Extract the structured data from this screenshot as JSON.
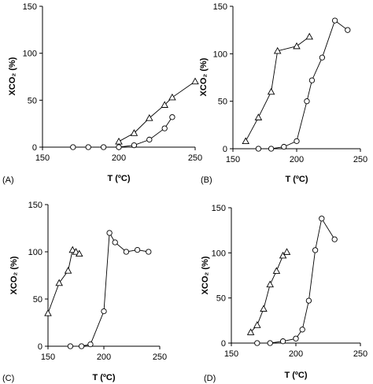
{
  "chart_data": [
    {
      "type": "line",
      "panel_label": "(A)",
      "xlabel": "T (ºC)",
      "ylabel": "XCO₂ (%)",
      "xlim": [
        150,
        250
      ],
      "ylim": [
        0,
        150
      ],
      "xticks": [
        "150",
        "200",
        "250"
      ],
      "yticks": [
        "0",
        "50",
        "100",
        "150"
      ],
      "series": [
        {
          "marker": "triangle",
          "x": [
            200,
            210,
            220,
            230,
            235,
            250
          ],
          "y": [
            6,
            15,
            31,
            45,
            53,
            70
          ]
        },
        {
          "marker": "circle",
          "x": [
            170,
            180,
            190,
            200,
            210,
            220,
            230,
            235
          ],
          "y": [
            0,
            0,
            0,
            0,
            2,
            8,
            20,
            32
          ]
        }
      ]
    },
    {
      "type": "line",
      "panel_label": "(B)",
      "xlabel": "T (ºC)",
      "ylabel": "XCO₂ (%)",
      "xlim": [
        150,
        250
      ],
      "ylim": [
        0,
        150
      ],
      "xticks": [
        "150",
        "200",
        "250"
      ],
      "yticks": [
        "0",
        "50",
        "100",
        "150"
      ],
      "series": [
        {
          "marker": "triangle",
          "x": [
            160,
            170,
            180,
            185,
            200,
            210
          ],
          "y": [
            8,
            33,
            60,
            103,
            108,
            118
          ]
        },
        {
          "marker": "circle",
          "x": [
            170,
            180,
            190,
            200,
            208,
            212,
            220,
            230,
            240
          ],
          "y": [
            0,
            0,
            2,
            8,
            50,
            72,
            96,
            135,
            125
          ]
        }
      ]
    },
    {
      "type": "line",
      "panel_label": "(C)",
      "xlabel": "T (ºC)",
      "ylabel": "XCO₂ (%)",
      "xlim": [
        150,
        250
      ],
      "ylim": [
        0,
        150
      ],
      "xticks": [
        "150",
        "200",
        "250"
      ],
      "yticks": [
        "0",
        "50",
        "100",
        "150"
      ],
      "series": [
        {
          "marker": "triangle",
          "x": [
            150,
            160,
            168,
            172,
            175,
            178
          ],
          "y": [
            35,
            67,
            80,
            102,
            100,
            98
          ]
        },
        {
          "marker": "circle",
          "x": [
            170,
            180,
            188,
            200,
            205,
            210,
            220,
            230,
            240
          ],
          "y": [
            0,
            0,
            2,
            37,
            120,
            110,
            100,
            102,
            100
          ]
        }
      ]
    },
    {
      "type": "line",
      "panel_label": "(D)",
      "xlabel": "T (ºC)",
      "ylabel": "XCO₂ (%)",
      "xlim": [
        150,
        250
      ],
      "ylim": [
        0,
        150
      ],
      "xticks": [
        "150",
        "200",
        "250"
      ],
      "yticks": [
        "0",
        "50",
        "100",
        "150"
      ],
      "series": [
        {
          "marker": "triangle",
          "x": [
            165,
            170,
            175,
            180,
            185,
            190,
            193
          ],
          "y": [
            12,
            20,
            38,
            65,
            80,
            97,
            101
          ]
        },
        {
          "marker": "circle",
          "x": [
            170,
            180,
            190,
            200,
            205,
            210,
            215,
            220,
            230
          ],
          "y": [
            0,
            0,
            2,
            5,
            15,
            47,
            103,
            138,
            115
          ]
        }
      ]
    }
  ]
}
